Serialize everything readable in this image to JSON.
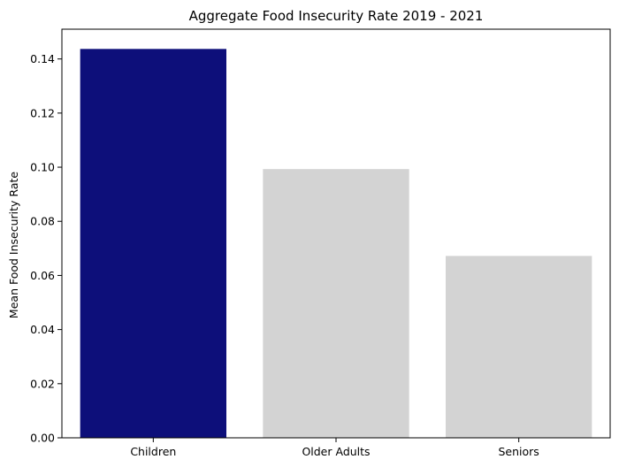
{
  "chart_data": {
    "type": "bar",
    "title": "Aggregate Food Insecurity Rate 2019 - 2021",
    "xlabel": "",
    "ylabel": "Mean Food Insecurity Rate",
    "categories": [
      "Children",
      "Older Adults",
      "Seniors"
    ],
    "values": [
      0.1437,
      0.0993,
      0.0672
    ],
    "bar_colors": [
      "#0d0f7a",
      "#d3d3d3",
      "#d3d3d3"
    ],
    "ylim": [
      0,
      0.151
    ],
    "yticks": [
      0.0,
      0.02,
      0.04,
      0.06,
      0.08,
      0.1,
      0.12,
      0.14
    ],
    "ytick_labels": [
      "0.00",
      "0.02",
      "0.04",
      "0.06",
      "0.08",
      "0.10",
      "0.12",
      "0.14"
    ],
    "grid": false,
    "legend": "none"
  }
}
